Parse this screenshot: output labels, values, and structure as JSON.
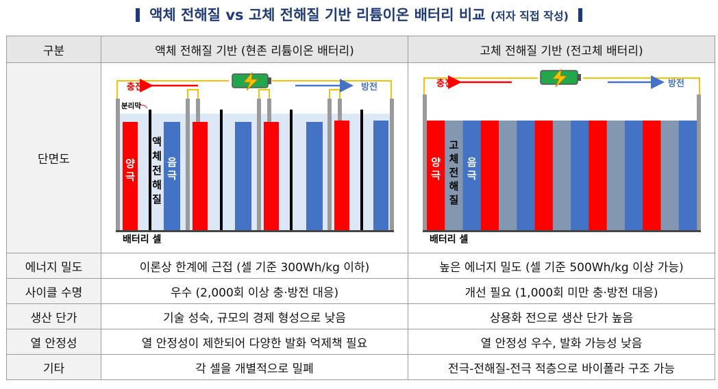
{
  "title": "액체 전해질 vs 고체 전해질 기반 리튬이온 배터리 비교",
  "title_note": "(저자 직접 작성)",
  "table": {
    "headers": [
      "구분",
      "액체 전해질 기반 (현존 리튬이온 배터리)",
      "고체 전해질 기반 (전고체 배터리)"
    ],
    "diagram_row_label": "단면도",
    "rows": [
      {
        "label": "에너지 밀도",
        "liquid": "이론상 한계에 근접 (셀 기준 300Wh/kg 이하)",
        "solid": "높은 에너지 밀도 (셀 기준 500Wh/kg 이상 가능)"
      },
      {
        "label": "사이클 수명",
        "liquid": "우수 (2,000회 이상 충·방전 대응)",
        "solid": "개선 필요 (1,000회 미만 충·방전 대응)"
      },
      {
        "label": "생산 단가",
        "liquid": "기술 성숙, 규모의 경제 형성으로 낮음",
        "solid": "상용화 전으로 생산 단가 높음"
      },
      {
        "label": "열 안정성",
        "liquid": "열 안정성이 제한되어 다양한 발화 억제책 필요",
        "solid": "열 안정성 우수, 발화 가능성 낮음"
      },
      {
        "label": "기타",
        "liquid": "각 셀을 개별적으로 밀폐",
        "solid": "전극-전해질-전극 적층으로 바이폴라 구조 가능"
      }
    ]
  },
  "diagram": {
    "charge": "충전",
    "discharge": "방전",
    "separator": "분리막",
    "cathode": "양극",
    "anode": "음극",
    "liquid_electrolyte": "액체전해질",
    "solid_electrolyte": "고체전해질",
    "cell_label": "배터리 셀",
    "colors": {
      "cathode": "#ff0000",
      "anode": "#4472c4",
      "solid_electrolyte": "#8497b0",
      "liquid_electrolyte": "#dde8f6",
      "charge_arrow": "#ff0000",
      "discharge_arrow": "#4472c4",
      "wire": "#f5c400",
      "battery": "#22a84a"
    }
  }
}
